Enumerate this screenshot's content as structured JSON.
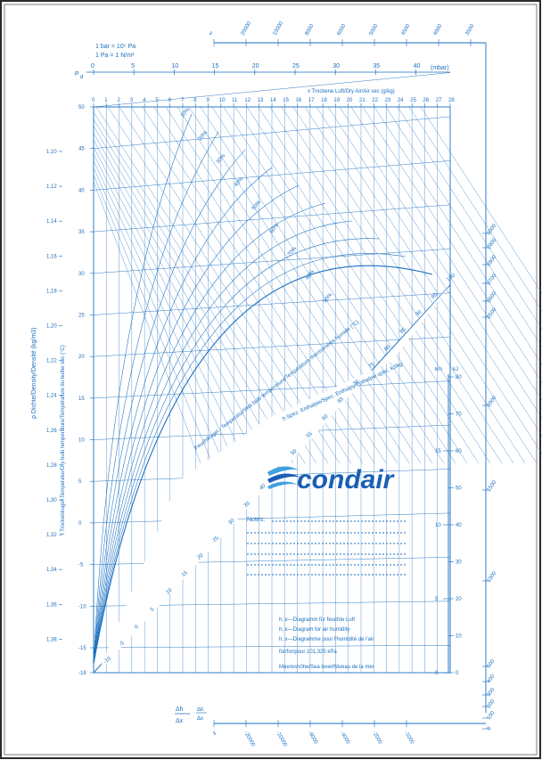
{
  "colors": {
    "ink": "#1a6fbf",
    "brand": "#1a5fb4",
    "border": "#2a2a2a",
    "paper": "#ffffff"
  },
  "header": {
    "bar_def": "1 bar  = 10⁵ Pa",
    "pa_def": "1 Pa  = 1 N/m²",
    "pd_symbol": "P",
    "pd_subscript": "d",
    "pressure_unit": "(mbar)",
    "pressure_ticks": [
      "0",
      "5",
      "10",
      "15",
      "20",
      "25",
      "30",
      "35",
      "40"
    ],
    "x_axis_title": "x  Trockene Luft/Dry Air/Air sec (g/kg)",
    "x_ticks": [
      "0",
      "1",
      "2",
      "3",
      "4",
      "5",
      "6",
      "7",
      "8",
      "9",
      "10",
      "11",
      "12",
      "13",
      "14",
      "15",
      "16",
      "17",
      "18",
      "19",
      "20",
      "21",
      "22",
      "23",
      "24",
      "25",
      "26",
      "27",
      "28"
    ]
  },
  "top_scale": {
    "ticks": [
      "∞",
      "20000",
      "10000",
      "8000",
      "6000",
      "5000",
      "4500",
      "4000",
      "3500"
    ]
  },
  "right_scale": {
    "ticks": [
      "3000",
      "2900",
      "2800",
      "2700",
      "2600",
      "2500",
      "2000",
      "1500",
      "1000",
      "500",
      "400",
      "300",
      "200",
      "100",
      "0"
    ]
  },
  "bottom_scale": {
    "ticks": [
      "∞",
      "-20000",
      "-10000",
      "-6000",
      "-4000",
      "-2000",
      "-1000"
    ],
    "ratio_symbol": "Δh",
    "ratio_denominator": "Δx"
  },
  "left_axes": {
    "density_title": "ρ Dichte/Density/Densité (kg/m3)",
    "temp_title": "t Trockenkugel-Temperatur/Dry bulb temperature/Température du bulbe sec (°C)",
    "density_ticks": [
      "1,10",
      "1,12",
      "1,14",
      "1,16",
      "1,18",
      "1,20",
      "1,22",
      "1,24",
      "1,26",
      "1,28",
      "1,30",
      "1,32",
      "1,34",
      "1,36",
      "1,38"
    ],
    "temp_ticks": [
      "50",
      "45",
      "40",
      "35",
      "30",
      "25",
      "20",
      "15",
      "10",
      "5",
      "0",
      "-5",
      "-10",
      "-15",
      "-18"
    ]
  },
  "curves": {
    "rh_labels": [
      "10%",
      "20%",
      "30%",
      "40%",
      "50%",
      "60%",
      "70%",
      "80%",
      "90%"
    ],
    "wet_bulb_title": "Feuchtkugel - Temperatur/Wet bulb temperature/Température thermomètre humide (°C)",
    "enthalpy_title": "h Spez. Enthalpie/Spec. Enthalpy/Enthalpie spéc. kJ/kg",
    "diag_ticks": [
      "-10",
      "-5",
      "0",
      "5",
      "10",
      "15",
      "20",
      "25",
      "30",
      "35",
      "40",
      "45",
      "50",
      "55",
      "60",
      "65",
      "70",
      "75",
      "80",
      "85",
      "90",
      "95",
      "100"
    ]
  },
  "right_panel": {
    "km_label": "km",
    "kj_label": "kJ",
    "km_ticks": [
      "0",
      "5",
      "10",
      "15"
    ],
    "kj_ticks": [
      "0",
      "10",
      "20",
      "30",
      "40",
      "50",
      "60",
      "70",
      "80"
    ]
  },
  "brand": {
    "name": "condair"
  },
  "notes": {
    "label": "Notes:"
  },
  "legend": {
    "line1": "h, x—Diagramm für feuchte Luft",
    "line2": "h, x—Diagram for air humidity",
    "line3": "h, x—Diagramme pour l'humidité de l'air",
    "line4": "für/for/pour 101,325 kPa",
    "line5": "Meereshöhe/Sea level/Niveau de la mer"
  }
}
